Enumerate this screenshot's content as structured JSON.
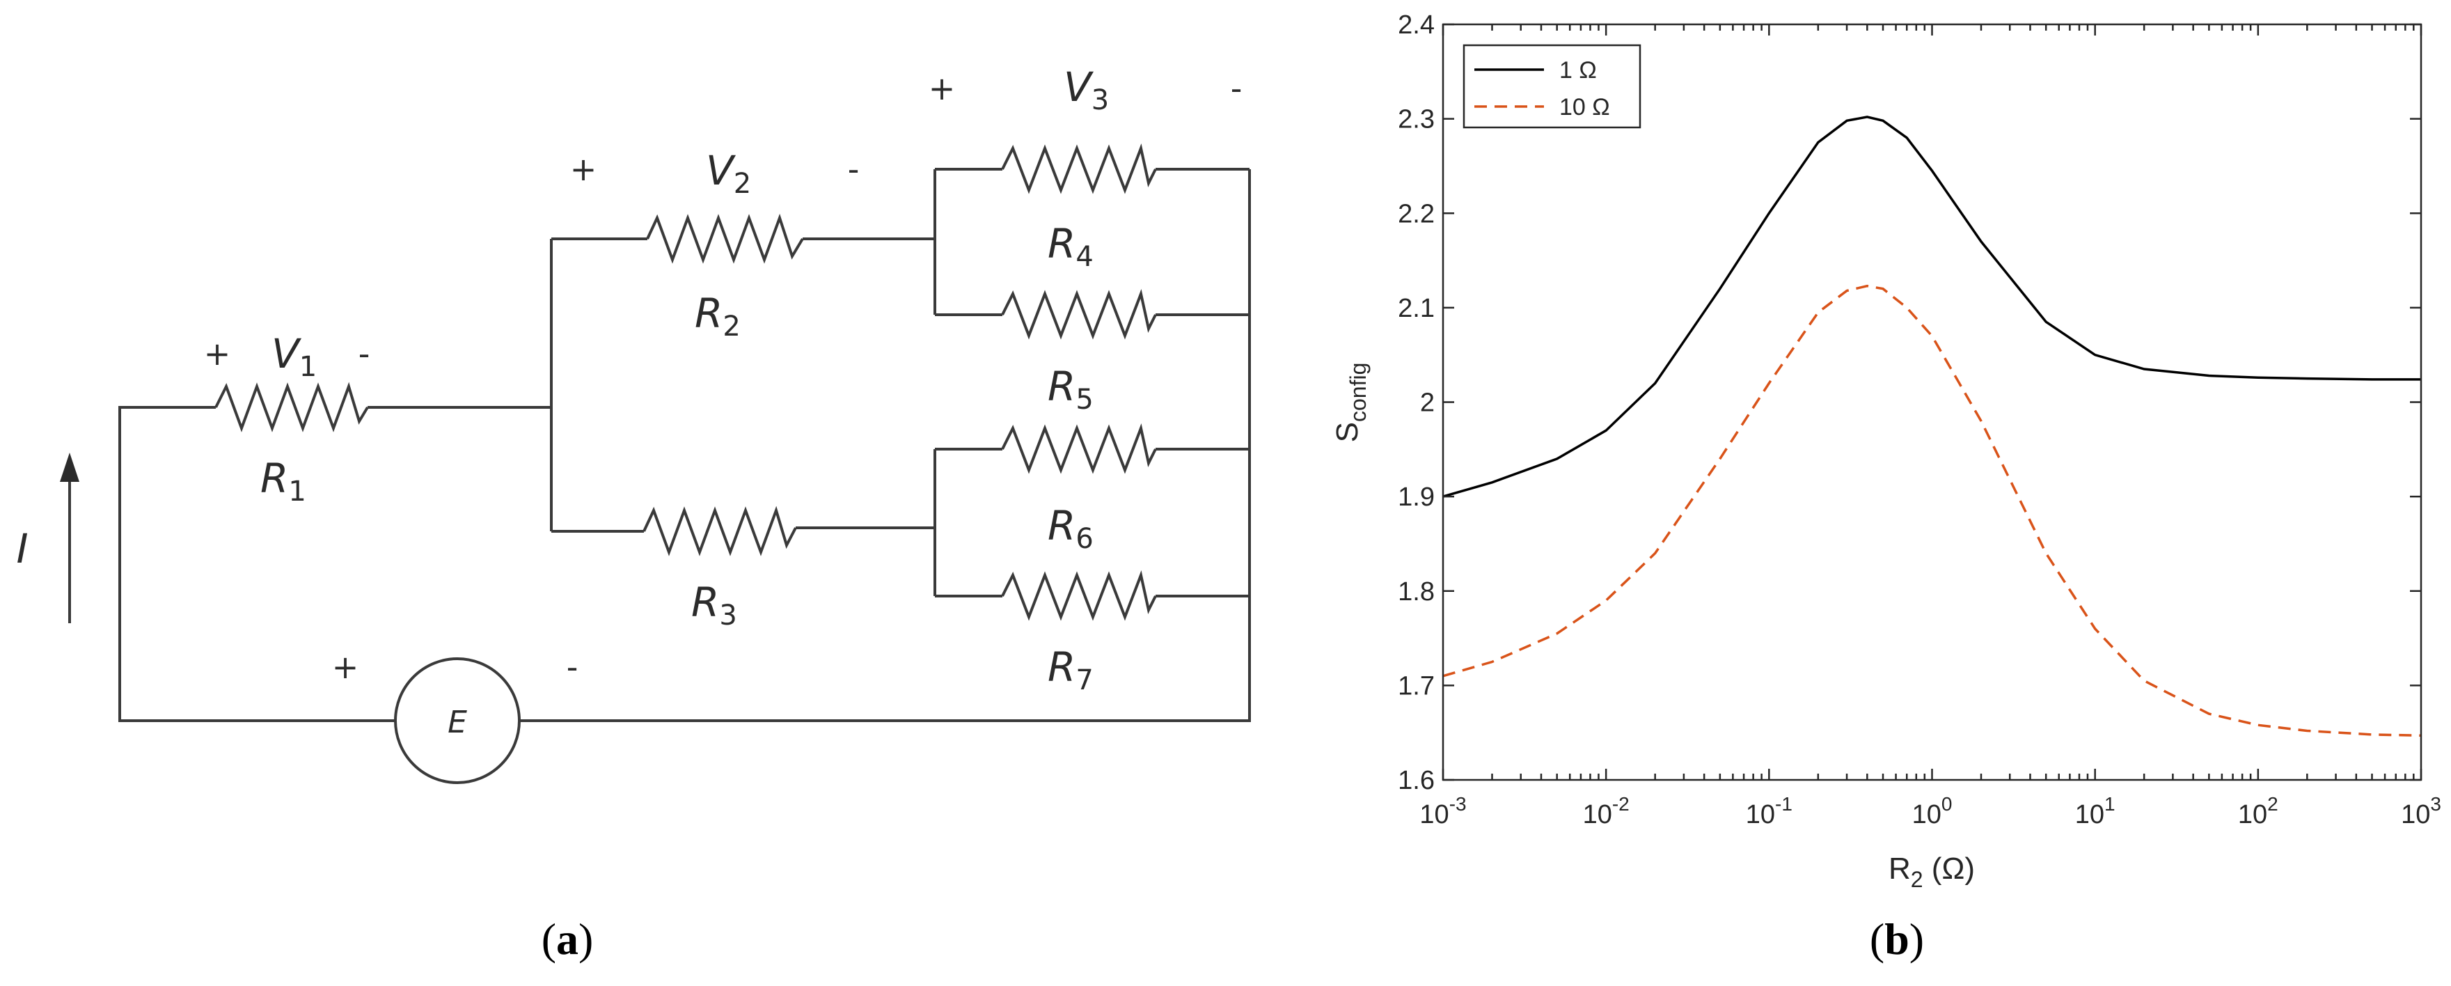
{
  "circuit": {
    "resistors": [
      "R",
      "R",
      "R",
      "R",
      "R",
      "R",
      "R"
    ],
    "resistor_subs": [
      "1",
      "2",
      "3",
      "4",
      "5",
      "6",
      "7"
    ],
    "voltages": [
      "V",
      "V",
      "V"
    ],
    "voltage_subs": [
      "1",
      "2",
      "3"
    ],
    "current": "I",
    "source": "E",
    "plus": "+",
    "minus": "-"
  },
  "panel_labels": {
    "a_open": "(",
    "a_letter": "a",
    "a_close": ")",
    "b_open": "(",
    "b_letter": "b",
    "b_close": ")"
  },
  "chart_data": {
    "type": "line",
    "xlabel_main": "R",
    "xlabel_sub": "2",
    "xlabel_unit": " (Ω)",
    "ylabel_main": "S",
    "ylabel_sub": "config",
    "x_scale": "log",
    "xlim": [
      0.001,
      1000
    ],
    "ylim": [
      1.6,
      2.4
    ],
    "x_tick_base": "10",
    "x_tick_exponents": [
      "-3",
      "-2",
      "-1",
      "0",
      "1",
      "2",
      "3"
    ],
    "y_ticks": [
      "1.6",
      "1.7",
      "1.8",
      "1.9",
      "2",
      "2.1",
      "2.2",
      "2.3",
      "2.4"
    ],
    "grid": false,
    "legend_position": "top-left",
    "series": [
      {
        "name": "1 Ω",
        "color": "#000000",
        "style": "solid",
        "x": [
          0.001,
          0.002,
          0.005,
          0.01,
          0.02,
          0.05,
          0.1,
          0.2,
          0.3,
          0.4,
          0.5,
          0.7,
          1,
          2,
          5,
          10,
          20,
          50,
          100,
          200,
          500,
          1000
        ],
        "y": [
          1.9,
          1.915,
          1.94,
          1.97,
          2.02,
          2.12,
          2.2,
          2.275,
          2.298,
          2.302,
          2.298,
          2.28,
          2.245,
          2.17,
          2.085,
          2.05,
          2.035,
          2.028,
          2.026,
          2.025,
          2.024,
          2.024
        ]
      },
      {
        "name": "10 Ω",
        "color": "#d95319",
        "style": "dashed",
        "x": [
          0.001,
          0.002,
          0.005,
          0.01,
          0.02,
          0.05,
          0.1,
          0.2,
          0.3,
          0.4,
          0.5,
          0.7,
          1,
          2,
          5,
          10,
          20,
          50,
          100,
          200,
          500,
          1000
        ],
        "y": [
          1.71,
          1.725,
          1.755,
          1.79,
          1.84,
          1.94,
          2.02,
          2.095,
          2.118,
          2.123,
          2.12,
          2.1,
          2.07,
          1.98,
          1.84,
          1.76,
          1.705,
          1.67,
          1.658,
          1.652,
          1.648,
          1.647
        ]
      }
    ]
  }
}
